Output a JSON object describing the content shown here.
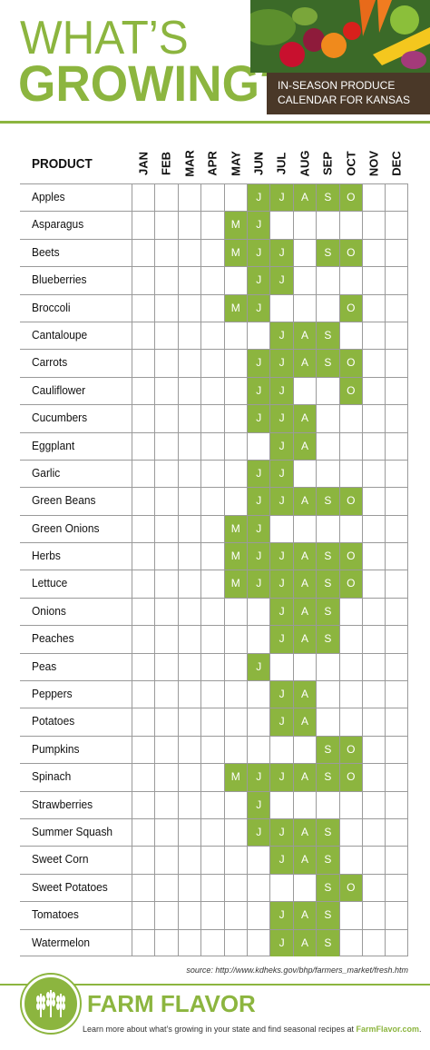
{
  "header": {
    "title_line1": "WHAT’S",
    "title_line2": "GROWING?",
    "crate_line1": "IN-SEASON PRODUCE",
    "crate_line2": "CALENDAR FOR KANSAS"
  },
  "table": {
    "product_header": "PRODUCT",
    "months": [
      "JAN",
      "FEB",
      "MAR",
      "APR",
      "MAY",
      "JUN",
      "JUL",
      "AUG",
      "SEP",
      "OCT",
      "NOV",
      "DEC"
    ],
    "rows": [
      {
        "name": "Apples",
        "months": {
          "6": "J",
          "7": "J",
          "8": "A",
          "9": "S",
          "10": "O"
        }
      },
      {
        "name": "Asparagus",
        "months": {
          "5": "M",
          "6": "J"
        }
      },
      {
        "name": "Beets",
        "months": {
          "5": "M",
          "6": "J",
          "7": "J",
          "9": "S",
          "10": "O"
        }
      },
      {
        "name": "Blueberries",
        "months": {
          "6": "J",
          "7": "J"
        }
      },
      {
        "name": "Broccoli",
        "months": {
          "5": "M",
          "6": "J",
          "10": "O"
        }
      },
      {
        "name": "Cantaloupe",
        "months": {
          "7": "J",
          "8": "A",
          "9": "S"
        }
      },
      {
        "name": "Carrots",
        "months": {
          "6": "J",
          "7": "J",
          "8": "A",
          "9": "S",
          "10": "O"
        }
      },
      {
        "name": "Cauliflower",
        "months": {
          "6": "J",
          "7": "J",
          "10": "O"
        }
      },
      {
        "name": "Cucumbers",
        "months": {
          "6": "J",
          "7": "J",
          "8": "A"
        }
      },
      {
        "name": "Eggplant",
        "months": {
          "7": "J",
          "8": "A"
        }
      },
      {
        "name": "Garlic",
        "months": {
          "6": "J",
          "7": "J"
        }
      },
      {
        "name": "Green Beans",
        "months": {
          "6": "J",
          "7": "J",
          "8": "A",
          "9": "S",
          "10": "O"
        }
      },
      {
        "name": "Green Onions",
        "months": {
          "5": "M",
          "6": "J"
        }
      },
      {
        "name": "Herbs",
        "months": {
          "5": "M",
          "6": "J",
          "7": "J",
          "8": "A",
          "9": "S",
          "10": "O"
        }
      },
      {
        "name": "Lettuce",
        "months": {
          "5": "M",
          "6": "J",
          "7": "J",
          "8": "A",
          "9": "S",
          "10": "O"
        }
      },
      {
        "name": "Onions",
        "months": {
          "7": "J",
          "8": "A",
          "9": "S"
        }
      },
      {
        "name": "Peaches",
        "months": {
          "7": "J",
          "8": "A",
          "9": "S"
        }
      },
      {
        "name": "Peas",
        "months": {
          "6": "J"
        }
      },
      {
        "name": "Peppers",
        "months": {
          "7": "J",
          "8": "A"
        }
      },
      {
        "name": "Potatoes",
        "months": {
          "7": "J",
          "8": "A"
        }
      },
      {
        "name": "Pumpkins",
        "months": {
          "9": "S",
          "10": "O"
        }
      },
      {
        "name": "Spinach",
        "months": {
          "5": "M",
          "6": "J",
          "7": "J",
          "8": "A",
          "9": "S",
          "10": "O"
        }
      },
      {
        "name": "Strawberries",
        "months": {
          "6": "J"
        }
      },
      {
        "name": "Summer Squash",
        "months": {
          "6": "J",
          "7": "J",
          "8": "A",
          "9": "S"
        }
      },
      {
        "name": "Sweet Corn",
        "months": {
          "7": "J",
          "8": "A",
          "9": "S"
        }
      },
      {
        "name": "Sweet Potatoes",
        "months": {
          "9": "S",
          "10": "O"
        }
      },
      {
        "name": "Tomatoes",
        "months": {
          "7": "J",
          "8": "A",
          "9": "S"
        }
      },
      {
        "name": "Watermelon",
        "months": {
          "7": "J",
          "8": "A",
          "9": "S"
        }
      }
    ]
  },
  "source": "source: http://www.kdheks.gov/bhp/farmers_market/fresh.htm",
  "footer": {
    "brand": "FARM FLAVOR",
    "note_prefix": "Learn more about what’s growing in your state and find seasonal recipes at ",
    "note_link": "FarmFlavor.com",
    "note_suffix": "."
  },
  "colors": {
    "accent": "#8cb53f",
    "text": "#111111",
    "crate": "#4a3828"
  }
}
